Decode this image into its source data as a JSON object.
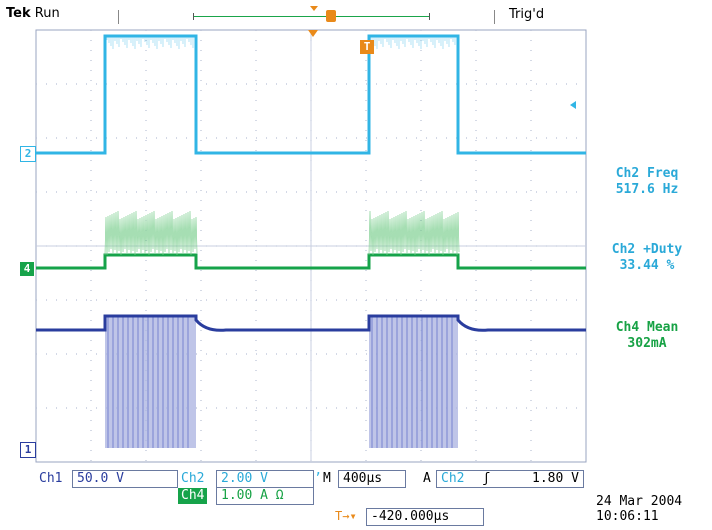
{
  "header": {
    "brand": "Tek",
    "state": "Run",
    "trigger_status": "Trig'd",
    "trigger_marker": "T"
  },
  "colors": {
    "ch1": "#2a3d9e",
    "ch2": "#31b5e5",
    "ch4": "#16a34a",
    "trigger": "#e98a1a",
    "grid": "#b9c1d6"
  },
  "markers": {
    "ch1": "1",
    "ch2": "2",
    "ch4": "4"
  },
  "measurements": [
    {
      "label": "Ch2 Freq",
      "value": "517.6 Hz",
      "color": "#2aa9d8"
    },
    {
      "label": "Ch2 +Duty",
      "value": "33.44 %",
      "color": "#2aa9d8"
    },
    {
      "label": "Ch4 Mean",
      "value": "302mA",
      "color": "#17a245"
    }
  ],
  "settings": {
    "ch1_label": "Ch1",
    "ch1_scale": "50.0 V",
    "ch2_label": "Ch2",
    "ch2_scale": "2.00 V",
    "bw_symbol": "’",
    "time_label": "M",
    "timebase": "400μs",
    "trig_mode": "A",
    "trig_source": "Ch2",
    "trig_slope": "ʃ",
    "trig_level": "1.80 V",
    "ch4_label": "Ch4",
    "ch4_scale": "1.00 A Ω",
    "position_icon": "T→▾",
    "position": "-420.000μs"
  },
  "date": "24 Mar  2004",
  "time": "10:06:11"
}
